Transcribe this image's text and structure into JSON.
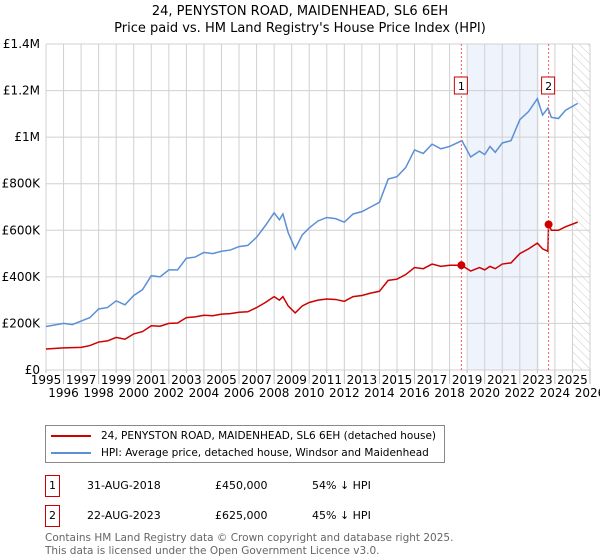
{
  "chart_data": {
    "type": "line",
    "title": "24, PENYSTON ROAD, MAIDENHEAD, SL6 6EH",
    "subtitle": "Price paid vs. HM Land Registry's House Price Index (HPI)",
    "xlim": [
      1995,
      2026
    ],
    "ylim": [
      0,
      1400000
    ],
    "y_ticks": [
      {
        "v": 0,
        "label": "£0"
      },
      {
        "v": 200000,
        "label": "£200K"
      },
      {
        "v": 400000,
        "label": "£400K"
      },
      {
        "v": 600000,
        "label": "£600K"
      },
      {
        "v": 800000,
        "label": "£800K"
      },
      {
        "v": 1000000,
        "label": "£1M"
      },
      {
        "v": 1200000,
        "label": "£1.2M"
      },
      {
        "v": 1400000,
        "label": "£1.4M"
      }
    ],
    "x_ticks": [
      "1995",
      "1996",
      "1997",
      "1998",
      "1999",
      "2000",
      "2001",
      "2002",
      "2003",
      "2004",
      "2005",
      "2006",
      "2007",
      "2008",
      "2009",
      "2010",
      "2011",
      "2012",
      "2013",
      "2014",
      "2015",
      "2016",
      "2017",
      "2018",
      "2019",
      "2020",
      "2021",
      "2022",
      "2023",
      "2024",
      "2025",
      "2026"
    ],
    "grid": true,
    "shaded_range": [
      2019.0,
      2023.1
    ],
    "forecast_hatch_from": 2025.0,
    "series": [
      {
        "name": "24, PENYSTON ROAD, MAIDENHEAD, SL6 6EH (detached house)",
        "color": "#cc0000",
        "x": [
          1995,
          1996,
          1997,
          1997.5,
          1998,
          1998.5,
          1999,
          1999.5,
          2000,
          2000.5,
          2001,
          2001.5,
          2002,
          2002.5,
          2003,
          2003.5,
          2004,
          2004.5,
          2005,
          2005.5,
          2006,
          2006.5,
          2007,
          2007.5,
          2008,
          2008.3,
          2008.5,
          2008.8,
          2009.2,
          2009.6,
          2010,
          2010.5,
          2011,
          2011.5,
          2012,
          2012.5,
          2013,
          2013.5,
          2014,
          2014.5,
          2015,
          2015.5,
          2016,
          2016.5,
          2017,
          2017.5,
          2018,
          2018.67,
          2019.2,
          2019.7,
          2020,
          2020.3,
          2020.6,
          2021,
          2021.5,
          2022,
          2022.5,
          2023,
          2023.3,
          2023.6,
          2023.64,
          2023.8,
          2024.2,
          2024.6,
          2025.3
        ],
        "y": [
          90000,
          95000,
          97000,
          105000,
          120000,
          125000,
          140000,
          132000,
          155000,
          165000,
          190000,
          188000,
          200000,
          202000,
          225000,
          228000,
          235000,
          233000,
          240000,
          242000,
          248000,
          250000,
          268000,
          290000,
          315000,
          300000,
          315000,
          275000,
          245000,
          275000,
          290000,
          300000,
          305000,
          303000,
          295000,
          315000,
          320000,
          330000,
          338000,
          385000,
          390000,
          410000,
          440000,
          435000,
          455000,
          445000,
          450000,
          450000,
          425000,
          440000,
          430000,
          445000,
          435000,
          455000,
          460000,
          500000,
          520000,
          545000,
          520000,
          510000,
          625000,
          600000,
          600000,
          615000,
          635000
        ]
      },
      {
        "name": "HPI: Average price, detached house, Windsor and Maidenhead",
        "color": "#5b8fd6",
        "x": [
          1995,
          1996,
          1996.5,
          1997,
          1997.5,
          1998,
          1998.5,
          1999,
          1999.5,
          2000,
          2000.5,
          2001,
          2001.5,
          2002,
          2002.5,
          2003,
          2003.5,
          2004,
          2004.5,
          2005,
          2005.5,
          2006,
          2006.5,
          2007,
          2007.5,
          2008,
          2008.3,
          2008.5,
          2008.8,
          2009.2,
          2009.6,
          2010,
          2010.5,
          2011,
          2011.5,
          2012,
          2012.5,
          2013,
          2013.5,
          2014,
          2014.5,
          2015,
          2015.5,
          2016,
          2016.5,
          2017,
          2017.5,
          2018,
          2018.7,
          2019.2,
          2019.7,
          2020,
          2020.3,
          2020.6,
          2021,
          2021.5,
          2022,
          2022.5,
          2023,
          2023.3,
          2023.6,
          2023.8,
          2024.2,
          2024.6,
          2025.3
        ],
        "y": [
          187000,
          200000,
          195000,
          210000,
          225000,
          262000,
          268000,
          297000,
          280000,
          320000,
          345000,
          405000,
          400000,
          430000,
          430000,
          480000,
          485000,
          505000,
          500000,
          510000,
          515000,
          530000,
          535000,
          570000,
          620000,
          675000,
          645000,
          670000,
          590000,
          520000,
          580000,
          610000,
          640000,
          655000,
          650000,
          635000,
          670000,
          680000,
          700000,
          720000,
          820000,
          830000,
          870000,
          945000,
          930000,
          970000,
          950000,
          960000,
          985000,
          915000,
          940000,
          925000,
          960000,
          935000,
          975000,
          985000,
          1075000,
          1110000,
          1165000,
          1095000,
          1125000,
          1085000,
          1080000,
          1115000,
          1145000
        ]
      }
    ],
    "annotations": [
      {
        "label": "1",
        "x": 2018.67,
        "y": 450000
      },
      {
        "label": "2",
        "x": 2023.64,
        "y": 625000
      }
    ]
  },
  "legend": [
    {
      "label": "24, PENYSTON ROAD, MAIDENHEAD, SL6 6EH (detached house)",
      "color": "#cc0000"
    },
    {
      "label": "HPI: Average price, detached house, Windsor and Maidenhead",
      "color": "#5b8fd6"
    }
  ],
  "transactions": [
    {
      "num": "1",
      "date": "31-AUG-2018",
      "price": "£450,000",
      "hpi": "54% ↓ HPI"
    },
    {
      "num": "2",
      "date": "22-AUG-2023",
      "price": "£625,000",
      "hpi": "45% ↓ HPI"
    }
  ],
  "footer": [
    "Contains HM Land Registry data © Crown copyright and database right 2025.",
    "This data is licensed under the Open Government Licence v3.0."
  ]
}
